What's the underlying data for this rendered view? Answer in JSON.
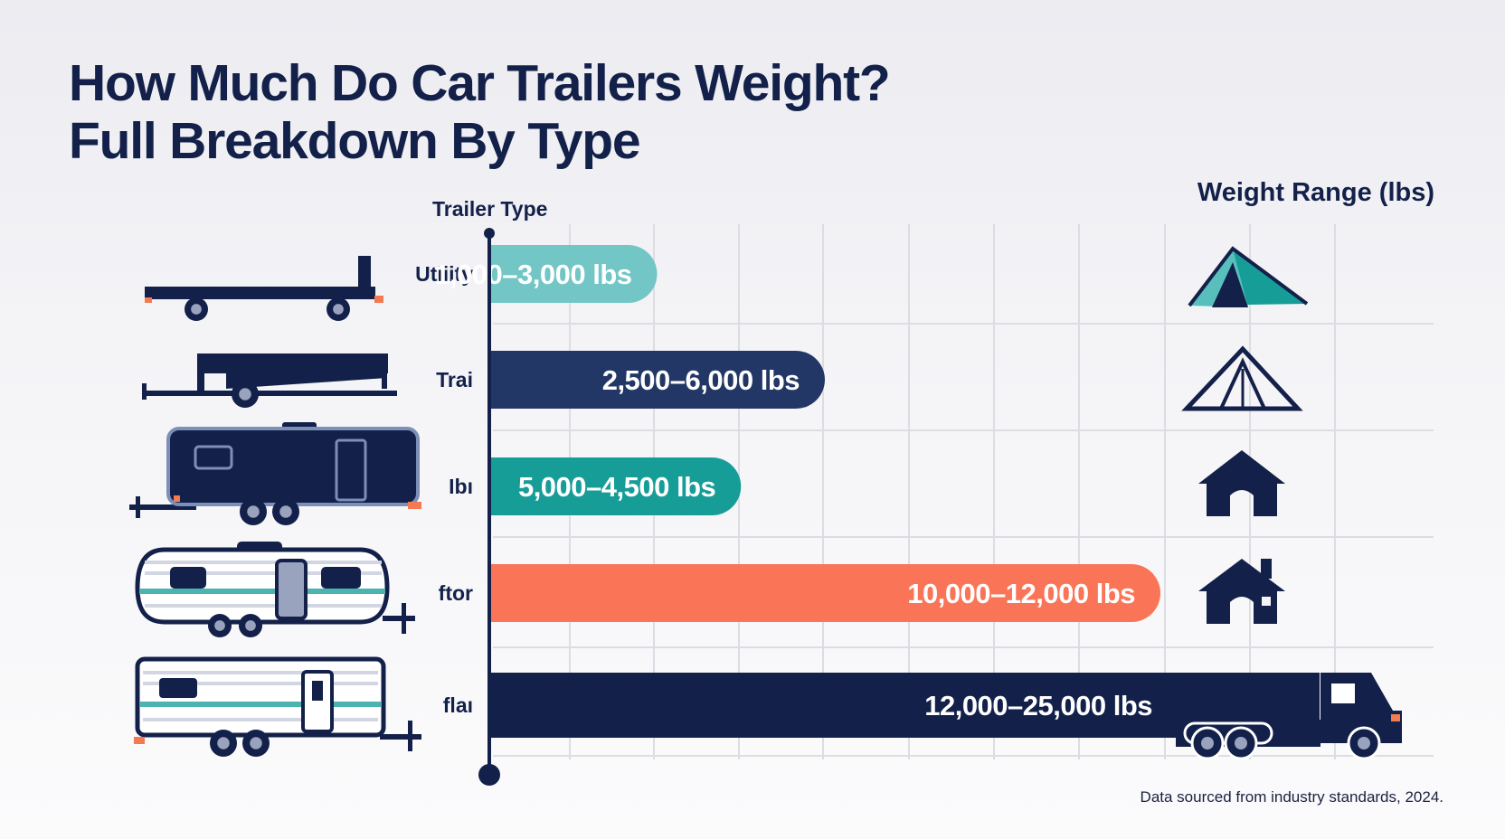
{
  "chart_data": {
    "type": "bar",
    "orientation": "horizontal",
    "title": "How Much Do Car Trailers Weight?",
    "subtitle": "Full Breakdown By Type",
    "xlabel": "Trailer Type",
    "ylabel": "Weight Range (lbs)",
    "categories": [
      "Utiiity",
      "Trai",
      "Ibı",
      "ftor",
      "flaı"
    ],
    "values": [
      3000,
      6000,
      4500,
      12000,
      25000
    ],
    "data_labels": [
      "1,000–3,000 lbs",
      "2,500–6,000 lbs",
      "5,000–4,500 lbs",
      "10,000–12,000 lbs",
      "12,000–25,000 lbs"
    ],
    "bar_colors": [
      "#72c6c5",
      "#233766",
      "#179d98",
      "#fa7558",
      "#13214a"
    ],
    "trailer_icons": [
      "flatbed-trailer-icon",
      "car-hauler-trailer-icon",
      "enclosed-cargo-trailer-icon",
      "travel-trailer-icon",
      "camper-trailer-icon"
    ],
    "weight_icons": [
      "tent-icon",
      "tent-outline-icon",
      "house-icon",
      "house-chimney-icon",
      "semi-truck-icon"
    ],
    "grid": true,
    "legend": "none"
  },
  "source": "Data sourced from industry standards, 2024."
}
